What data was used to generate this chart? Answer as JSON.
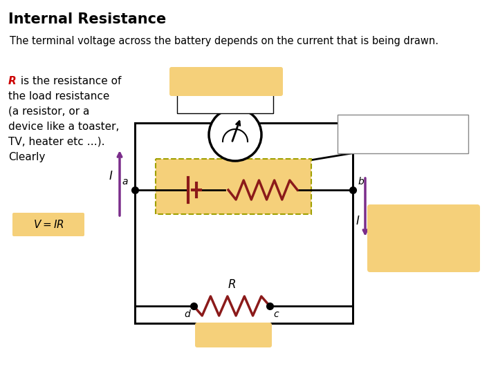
{
  "title": "Internal Resistance",
  "subtitle": "The terminal voltage across the battery depends on the current that is being drawn.",
  "title_fontsize": 15,
  "subtitle_fontsize": 10.5,
  "bg_color": "#ffffff",
  "left_text_lines": [
    "the load resistance",
    "(a resistor, or a",
    "device like a toaster,",
    "TV, heater etc …).",
    "Clearly"
  ],
  "R_color": "#cc0000",
  "orange_bg": "#f5d07a",
  "wire_color": "#000000",
  "resistor_color": "#8b1a1a",
  "arrow_color": "#7b2d8b",
  "node_color": "#000000"
}
